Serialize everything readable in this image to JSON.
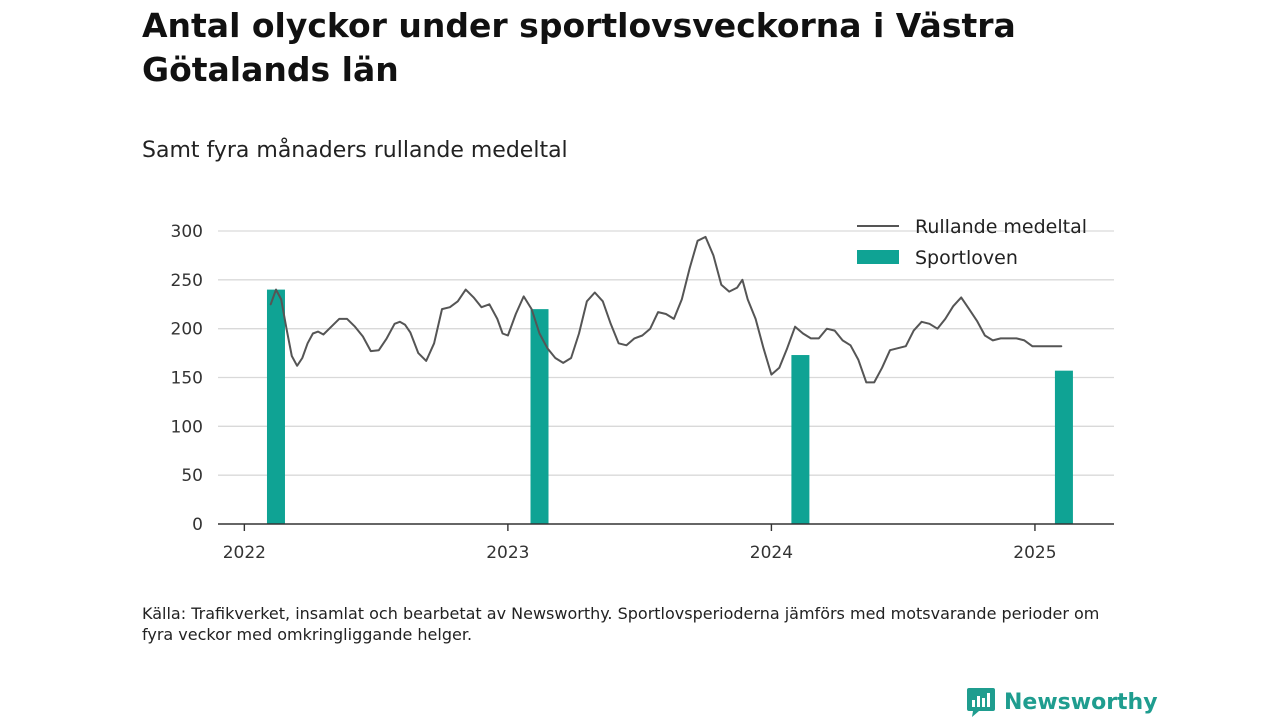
{
  "header": {
    "title": "Antal olyckor under sportlovsveckorna i Västra Götalands län",
    "subtitle": "Samt fyra månaders rullande medeltal"
  },
  "footer": {
    "source": "Källa: Trafikverket, insamlat och bearbetat av Newsworthy. Sportlovsperioderna jämförs med motsvarande perioder om fyra veckor med omkringliggande helger.",
    "brand": "Newsworthy"
  },
  "colors": {
    "bar": "#0fa394",
    "line": "#555555",
    "grid": "#d9d9d9",
    "axis": "#333333",
    "brand": "#1f9d8f"
  },
  "chart_data": {
    "type": "bar+line",
    "ylim": [
      0,
      300
    ],
    "yticks": [
      0,
      50,
      100,
      150,
      200,
      250,
      300
    ],
    "xlim": [
      2021.9,
      2025.3
    ],
    "xticks": [
      2022,
      2023,
      2024,
      2025
    ],
    "grid": true,
    "legend_position": "top-right",
    "series": [
      {
        "name": "Rullande medeltal",
        "type": "line",
        "x": [
          2022.1,
          2022.12,
          2022.14,
          2022.16,
          2022.18,
          2022.2,
          2022.22,
          2022.24,
          2022.26,
          2022.28,
          2022.3,
          2022.33,
          2022.36,
          2022.39,
          2022.42,
          2022.45,
          2022.48,
          2022.51,
          2022.54,
          2022.57,
          2022.59,
          2022.61,
          2022.63,
          2022.66,
          2022.69,
          2022.72,
          2022.75,
          2022.78,
          2022.81,
          2022.84,
          2022.87,
          2022.9,
          2022.93,
          2022.96,
          2022.98,
          2023.0,
          2023.03,
          2023.06,
          2023.09,
          2023.12,
          2023.15,
          2023.18,
          2023.21,
          2023.24,
          2023.27,
          2023.3,
          2023.33,
          2023.36,
          2023.39,
          2023.42,
          2023.45,
          2023.48,
          2023.51,
          2023.54,
          2023.57,
          2023.6,
          2023.63,
          2023.66,
          2023.69,
          2023.72,
          2023.75,
          2023.78,
          2023.81,
          2023.84,
          2023.87,
          2023.89,
          2023.91,
          2023.94,
          2023.97,
          2024.0,
          2024.03,
          2024.06,
          2024.09,
          2024.12,
          2024.15,
          2024.18,
          2024.21,
          2024.24,
          2024.27,
          2024.3,
          2024.33,
          2024.36,
          2024.39,
          2024.42,
          2024.45,
          2024.48,
          2024.51,
          2024.54,
          2024.57,
          2024.6,
          2024.63,
          2024.66,
          2024.69,
          2024.72,
          2024.75,
          2024.78,
          2024.81,
          2024.84,
          2024.87,
          2024.9,
          2024.93,
          2024.96,
          2024.99,
          2025.02,
          2025.05,
          2025.08,
          2025.1
        ],
        "values": [
          225,
          240,
          230,
          200,
          172,
          162,
          170,
          185,
          195,
          197,
          194,
          202,
          210,
          210,
          202,
          192,
          177,
          178,
          190,
          205,
          207,
          204,
          196,
          175,
          167,
          185,
          220,
          222,
          228,
          240,
          232,
          222,
          225,
          210,
          195,
          193,
          215,
          233,
          220,
          195,
          180,
          170,
          165,
          170,
          195,
          228,
          237,
          228,
          205,
          185,
          183,
          190,
          193,
          200,
          217,
          215,
          210,
          230,
          262,
          290,
          294,
          275,
          245,
          238,
          242,
          250,
          230,
          210,
          180,
          153,
          160,
          180,
          202,
          195,
          190,
          190,
          200,
          198,
          188,
          183,
          168,
          145,
          145,
          160,
          178,
          180,
          182,
          198,
          207,
          205,
          200,
          210,
          223,
          232,
          220,
          208,
          193,
          188,
          190,
          190,
          190,
          188,
          182,
          182,
          182,
          182,
          182
        ]
      },
      {
        "name": "Sportloven",
        "type": "bar",
        "x": [
          2022.12,
          2023.12,
          2024.11,
          2025.11
        ],
        "values": [
          240,
          220,
          173,
          157
        ]
      }
    ]
  }
}
